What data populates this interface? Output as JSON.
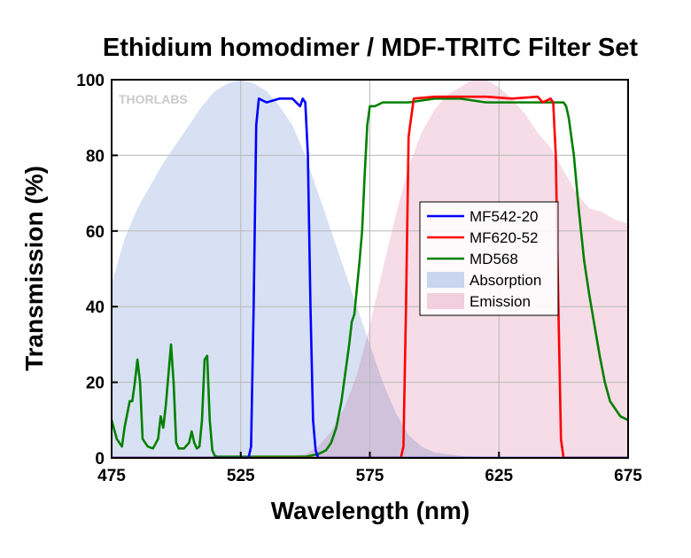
{
  "chart_data": {
    "type": "line",
    "title": "Ethidium homodimer / MDF-TRITC Filter Set",
    "xlabel": "Wavelength (nm)",
    "ylabel": "Transmission (%)",
    "xlim": [
      475,
      675
    ],
    "ylim": [
      0,
      100
    ],
    "xticks": [
      475,
      525,
      575,
      625,
      675
    ],
    "yticks": [
      0,
      20,
      40,
      60,
      80,
      100
    ],
    "grid": true,
    "legend_position": "center-right",
    "watermark": "THORLABS",
    "series": [
      {
        "name": "MF542-20",
        "kind": "line",
        "color": "#0000ff",
        "x": [
          475,
          528,
          529,
          530,
          531,
          532,
          535,
          540,
          545,
          548,
          549,
          550,
          551,
          552,
          553,
          554,
          555,
          675
        ],
        "y": [
          0,
          0,
          3,
          40,
          88,
          95,
          94,
          95,
          95,
          93,
          95,
          94,
          80,
          40,
          10,
          2,
          0,
          0
        ]
      },
      {
        "name": "MF620-52",
        "kind": "line",
        "color": "#ff0000",
        "x": [
          475,
          587,
          588,
          589,
          590,
          592,
          600,
          610,
          620,
          630,
          640,
          642,
          645,
          646,
          647,
          648,
          649,
          650,
          675
        ],
        "y": [
          0,
          0,
          3,
          40,
          85,
          95,
          95.5,
          95.5,
          95.5,
          95,
          95.5,
          94,
          95,
          94,
          80,
          40,
          5,
          0,
          0
        ]
      },
      {
        "name": "MD568",
        "kind": "line",
        "color": "#008000",
        "x": [
          475,
          477,
          479,
          480,
          482,
          483,
          484,
          485,
          486,
          487,
          489,
          491,
          493,
          494,
          495,
          496,
          497,
          498,
          499,
          500,
          501,
          503,
          505,
          506,
          507,
          508,
          509,
          510,
          511,
          512,
          513,
          514,
          515,
          516,
          517,
          518,
          520,
          525,
          530,
          540,
          550,
          555,
          558,
          560,
          562,
          564,
          566,
          567,
          568,
          569,
          570,
          571,
          572,
          573,
          574,
          575,
          577,
          580,
          585,
          590,
          600,
          610,
          620,
          630,
          640,
          645,
          650,
          651,
          652,
          654,
          656,
          658,
          660,
          662,
          664,
          666,
          668,
          670,
          672,
          675
        ],
        "y": [
          10,
          5,
          3,
          8,
          15,
          15,
          20,
          26,
          20,
          5,
          3,
          2.5,
          5,
          11,
          8,
          14,
          22,
          30,
          20,
          4,
          2.5,
          2.5,
          4,
          7,
          4,
          2.5,
          3,
          10,
          26,
          27,
          10,
          2,
          0.5,
          0.3,
          0.3,
          0.3,
          0.3,
          0.3,
          0.3,
          0.3,
          0.3,
          1,
          2,
          4,
          8,
          15,
          25,
          30,
          36,
          38,
          45,
          52,
          60,
          75,
          88,
          93,
          93,
          94,
          94,
          94,
          95,
          95,
          94,
          94,
          94,
          94,
          94,
          93,
          90,
          80,
          65,
          52,
          43,
          35,
          27,
          20,
          15,
          13,
          11,
          10
        ]
      },
      {
        "name": "Absorption",
        "kind": "area",
        "color": "#c9d5ee",
        "x": [
          475,
          480,
          485,
          490,
          495,
          500,
          505,
          510,
          515,
          520,
          525,
          530,
          535,
          540,
          545,
          550,
          555,
          560,
          565,
          570,
          575,
          580,
          585,
          590,
          595,
          600,
          610,
          620,
          630,
          675
        ],
        "y": [
          46,
          58,
          66,
          72,
          78,
          83,
          88,
          93,
          97,
          99,
          100,
          99,
          97,
          93,
          88,
          80,
          70,
          60,
          50,
          40,
          30,
          20,
          12,
          6,
          3,
          1.5,
          0.5,
          0.2,
          0,
          0
        ]
      },
      {
        "name": "Emission",
        "kind": "area",
        "color": "#f2cfdc",
        "x": [
          475,
          540,
          550,
          555,
          560,
          565,
          570,
          575,
          580,
          585,
          590,
          595,
          600,
          605,
          610,
          615,
          620,
          625,
          630,
          635,
          640,
          645,
          650,
          655,
          660,
          665,
          670,
          675
        ],
        "y": [
          0,
          0,
          1,
          3,
          7,
          13,
          22,
          35,
          50,
          64,
          77,
          86,
          92,
          96,
          98,
          100,
          100,
          98,
          95,
          91,
          86,
          82,
          76,
          70,
          66,
          65,
          63,
          62
        ]
      }
    ]
  }
}
